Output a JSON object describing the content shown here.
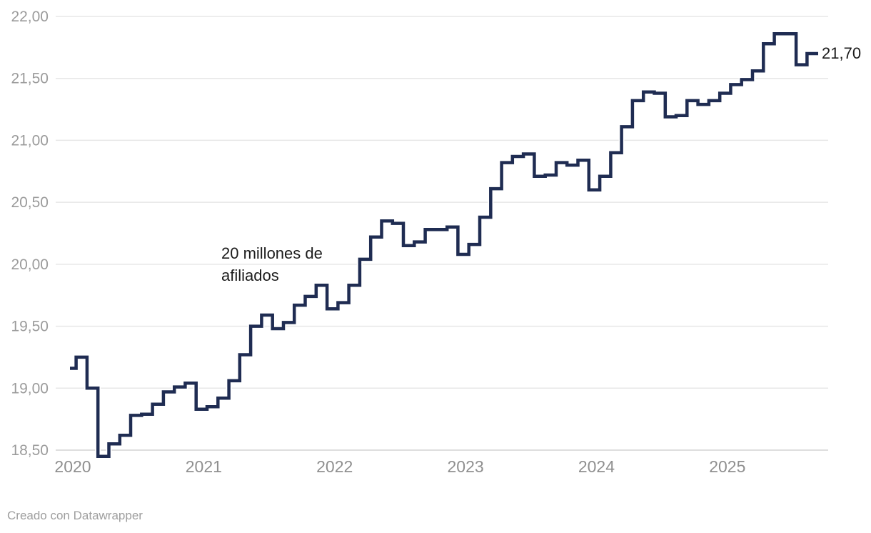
{
  "chart_data": {
    "type": "line",
    "interpolation": "step-middle",
    "grid": "horizontal",
    "legend": "none",
    "x": [
      "2020-01",
      "2020-02",
      "2020-03",
      "2020-04",
      "2020-05",
      "2020-06",
      "2020-07",
      "2020-08",
      "2020-09",
      "2020-10",
      "2020-11",
      "2020-12",
      "2021-01",
      "2021-02",
      "2021-03",
      "2021-04",
      "2021-05",
      "2021-06",
      "2021-07",
      "2021-08",
      "2021-09",
      "2021-10",
      "2021-11",
      "2021-12",
      "2022-01",
      "2022-02",
      "2022-03",
      "2022-04",
      "2022-05",
      "2022-06",
      "2022-07",
      "2022-08",
      "2022-09",
      "2022-10",
      "2022-11",
      "2022-12",
      "2023-01",
      "2023-02",
      "2023-03",
      "2023-04",
      "2023-05",
      "2023-06",
      "2023-07",
      "2023-08",
      "2023-09",
      "2023-10",
      "2023-11",
      "2023-12",
      "2024-01",
      "2024-02",
      "2024-03",
      "2024-04",
      "2024-05",
      "2024-06",
      "2024-07",
      "2024-08",
      "2024-09",
      "2024-10",
      "2024-11",
      "2024-12",
      "2025-01",
      "2025-02",
      "2025-03",
      "2025-04",
      "2025-05",
      "2025-06",
      "2025-07",
      "2025-08",
      "2025-09"
    ],
    "values": [
      19.16,
      19.25,
      19.0,
      18.45,
      18.55,
      18.62,
      18.78,
      18.79,
      18.87,
      18.97,
      19.01,
      19.04,
      18.83,
      18.85,
      18.92,
      19.06,
      19.27,
      19.5,
      19.59,
      19.48,
      19.53,
      19.67,
      19.74,
      19.83,
      19.64,
      19.69,
      19.83,
      20.04,
      20.22,
      20.35,
      20.33,
      20.15,
      20.18,
      20.28,
      20.28,
      20.3,
      20.08,
      20.16,
      20.38,
      20.61,
      20.82,
      20.87,
      20.89,
      20.71,
      20.72,
      20.82,
      20.8,
      20.84,
      20.6,
      20.71,
      20.9,
      21.11,
      21.32,
      21.39,
      21.38,
      21.19,
      21.2,
      21.32,
      21.29,
      21.32,
      21.38,
      21.45,
      21.49,
      21.56,
      21.78,
      21.86,
      21.86,
      21.61,
      21.7
    ],
    "ylim": [
      18.5,
      22.0
    ],
    "yticks": [
      {
        "value": 22.0,
        "label": "22,00"
      },
      {
        "value": 21.5,
        "label": "21,50"
      },
      {
        "value": 21.0,
        "label": "21,00"
      },
      {
        "value": 20.5,
        "label": "20,50"
      },
      {
        "value": 20.0,
        "label": "20,00"
      },
      {
        "value": 19.5,
        "label": "19,50"
      },
      {
        "value": 19.0,
        "label": "19,00"
      },
      {
        "value": 18.5,
        "label": "18,50"
      }
    ],
    "xticks": [
      {
        "label": "2020",
        "month_index": 0
      },
      {
        "label": "2021",
        "month_index": 12
      },
      {
        "label": "2022",
        "month_index": 24
      },
      {
        "label": "2023",
        "month_index": 36
      },
      {
        "label": "2024",
        "month_index": 48
      },
      {
        "label": "2025",
        "month_index": 60
      }
    ],
    "title": "",
    "xlabel": "",
    "ylabel": "",
    "annotation": {
      "line1": "20 millones de",
      "line2": "afiliados"
    },
    "last_value": 21.7,
    "last_value_label": "21,70"
  },
  "footer": {
    "credit": "Creado con Datawrapper"
  },
  "colors": {
    "line": "#1f2c52",
    "line_halo": "#ffffff",
    "gridline": "#e7e7e7",
    "baseline": "#d4d4d4",
    "y_tick_text": "#9b9b9b",
    "x_tick_text": "#8f8f8f",
    "annotation_text": "#1c1c1c",
    "background": "#ffffff"
  }
}
